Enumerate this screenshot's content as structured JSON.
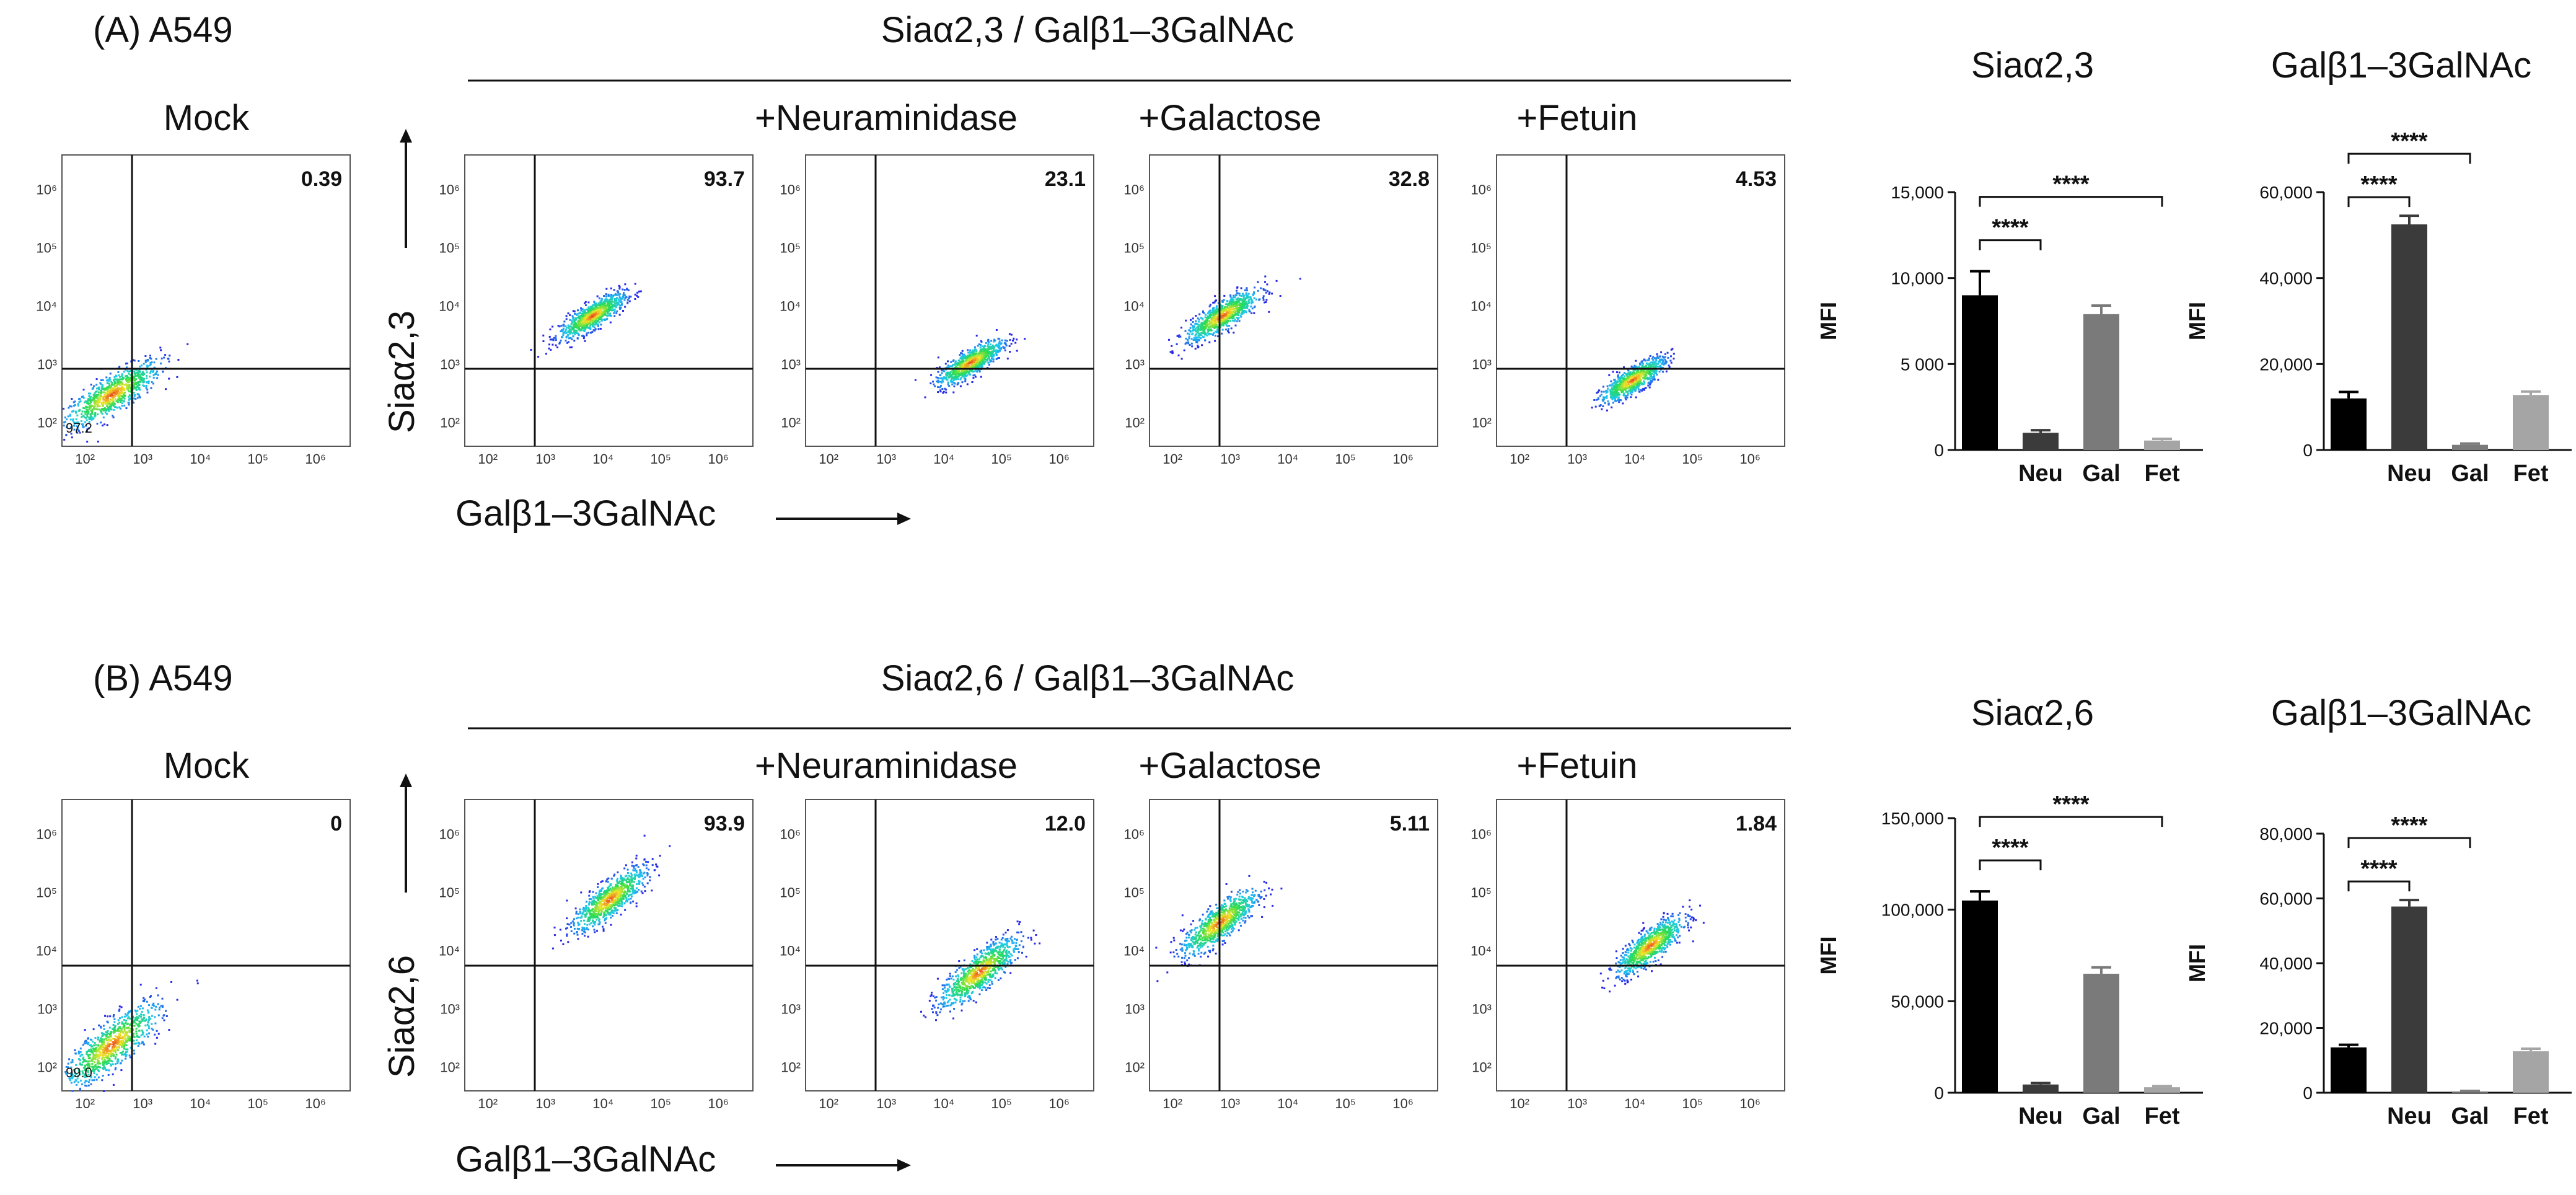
{
  "panels": [
    {
      "panel_label": "(A) A549",
      "group_title": "Siaα2,3 / Galβ1–3GalNAc",
      "y_axis_label": "Siaα2,3",
      "x_axis_label": "Galβ1–3GalNAc",
      "flow_plots": [
        {
          "title": "Mock",
          "upper_right": "0.39",
          "lower_left": "97.2"
        },
        {
          "title": "",
          "upper_right": "93.7"
        },
        {
          "title": "+Neuraminidase",
          "upper_right": "23.1"
        },
        {
          "title": "+Galactose",
          "upper_right": "32.8"
        },
        {
          "title": "+Fetuin",
          "upper_right": "4.53"
        }
      ]
    },
    {
      "panel_label": "(B) A549",
      "group_title": "Siaα2,6 / Galβ1–3GalNAc",
      "y_axis_label": "Siaα2,6",
      "x_axis_label": "Galβ1–3GalNAc",
      "flow_plots": [
        {
          "title": "Mock",
          "upper_right": "0",
          "lower_left": "99.0"
        },
        {
          "title": "",
          "upper_right": "93.9"
        },
        {
          "title": "+Neuraminidase",
          "upper_right": "12.0"
        },
        {
          "title": "+Galactose",
          "upper_right": "5.11"
        },
        {
          "title": "+Fetuin",
          "upper_right": "1.84"
        }
      ]
    }
  ],
  "flow_axis_ticks": [
    "10²",
    "10³",
    "10⁴",
    "10⁵",
    "10⁶"
  ],
  "chart_data": [
    {
      "type": "bar",
      "title": "Siaα2,3",
      "ylabel": "MFI",
      "categories": [
        "",
        "Neu",
        "Gal",
        "Fet"
      ],
      "values": [
        9000,
        1000,
        7900,
        550
      ],
      "errors": [
        1400,
        150,
        500,
        100
      ],
      "ylim": [
        0,
        15000
      ],
      "yticks": [
        0,
        5000,
        10000,
        15000
      ],
      "ytick_labels": [
        "0",
        "5 000",
        "10,000",
        "15,000"
      ],
      "colors": [
        "#000000",
        "#3b3b3b",
        "#7a7a7a",
        "#a5a5a5"
      ],
      "annotations": [
        {
          "from": 0,
          "to": 1,
          "text": "****"
        },
        {
          "from": 0,
          "to": 3,
          "text": "****"
        }
      ]
    },
    {
      "type": "bar",
      "title": "Galβ1–3GalNAc",
      "ylabel": "MFI",
      "categories": [
        "",
        "Neu",
        "Gal",
        "Fet"
      ],
      "values": [
        12000,
        52500,
        1200,
        12800
      ],
      "errors": [
        1500,
        2000,
        300,
        800
      ],
      "ylim": [
        0,
        60000
      ],
      "yticks": [
        0,
        20000,
        40000,
        60000
      ],
      "ytick_labels": [
        "0",
        "20,000",
        "40,000",
        "60,000"
      ],
      "colors": [
        "#000000",
        "#3b3b3b",
        "#7a7a7a",
        "#a5a5a5"
      ],
      "annotations": [
        {
          "from": 0,
          "to": 1,
          "text": "****"
        },
        {
          "from": 0,
          "to": 2,
          "text": "****"
        }
      ]
    },
    {
      "type": "bar",
      "title": "Siaα2,6",
      "ylabel": "MFI",
      "categories": [
        "",
        "Neu",
        "Gal",
        "Fet"
      ],
      "values": [
        105000,
        4500,
        65000,
        3000
      ],
      "errors": [
        5000,
        800,
        3500,
        600
      ],
      "ylim": [
        0,
        150000
      ],
      "yticks": [
        0,
        50000,
        100000,
        150000
      ],
      "ytick_labels": [
        "0",
        "50,000",
        "100,000",
        "150,000"
      ],
      "colors": [
        "#000000",
        "#3b3b3b",
        "#7a7a7a",
        "#a5a5a5"
      ],
      "annotations": [
        {
          "from": 0,
          "to": 1,
          "text": "****"
        },
        {
          "from": 0,
          "to": 3,
          "text": "****"
        }
      ]
    },
    {
      "type": "bar",
      "title": "Galβ1–3GalNAc",
      "ylabel": "MFI",
      "categories": [
        "",
        "Neu",
        "Gal",
        "Fet"
      ],
      "values": [
        14000,
        57500,
        400,
        12800
      ],
      "errors": [
        800,
        2000,
        150,
        800
      ],
      "ylim": [
        0,
        80000
      ],
      "yticks": [
        0,
        20000,
        40000,
        60000,
        80000
      ],
      "ytick_labels": [
        "0",
        "20,000",
        "40,000",
        "60,000",
        "80,000"
      ],
      "colors": [
        "#000000",
        "#3b3b3b",
        "#7a7a7a",
        "#a5a5a5"
      ],
      "annotations": [
        {
          "from": 0,
          "to": 1,
          "text": "****"
        },
        {
          "from": 0,
          "to": 2,
          "text": "****"
        }
      ]
    }
  ],
  "flow_population_centers": [
    [
      [
        [
          2.45,
          2.5,
          2.0
        ]
      ],
      [
        [
          3.8,
          3.85,
          0.62
        ]
      ],
      [
        [
          4.45,
          3.05,
          0.62
        ]
      ],
      [
        [
          2.85,
          3.85,
          0.95
        ]
      ],
      [
        [
          3.95,
          2.75,
          0.55
        ]
      ]
    ],
    [
      [
        [
          2.45,
          2.4,
          2.0
        ]
      ],
      [
        [
          4.1,
          4.9,
          0.95
        ]
      ],
      [
        [
          4.6,
          3.65,
          1.25
        ]
      ],
      [
        [
          2.8,
          4.5,
          1.05
        ]
      ],
      [
        [
          4.25,
          4.1,
          0.7
        ]
      ]
    ]
  ]
}
